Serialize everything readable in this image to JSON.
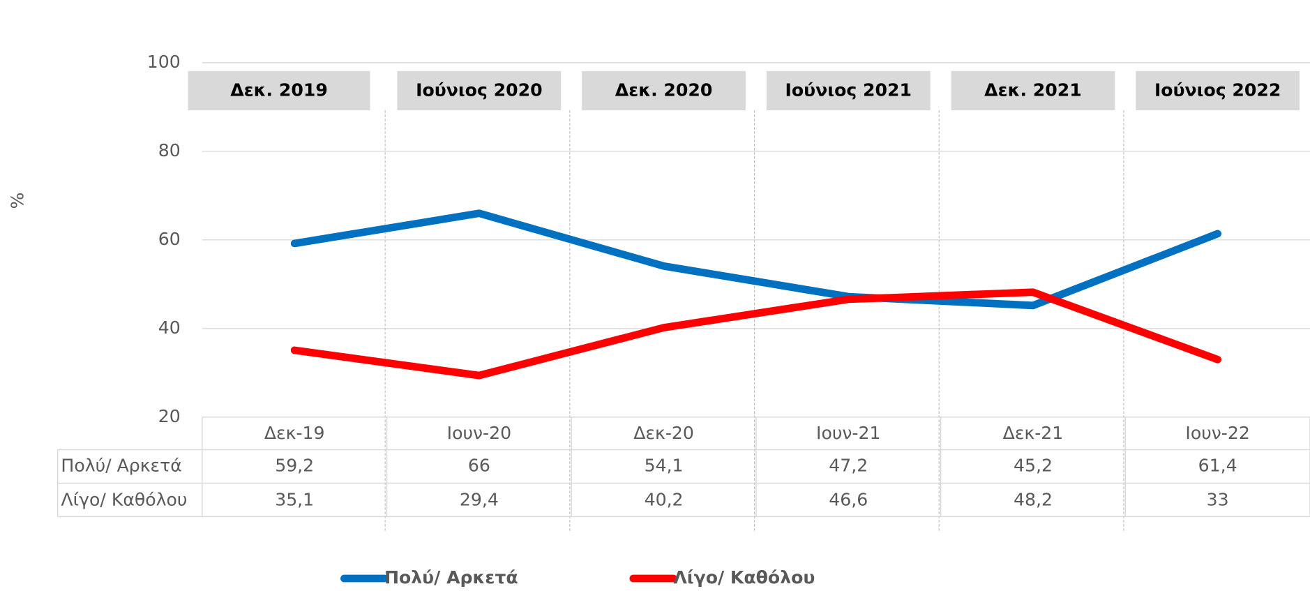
{
  "chart_data": {
    "type": "line",
    "y_label": "%",
    "period_labels": [
      "Δεκ. 2019",
      "Ιούνιος 2020",
      "Δεκ. 2020",
      "Ιούνιος 2021",
      "Δεκ. 2021",
      "Ιούνιος 2022"
    ],
    "categories": [
      "Δεκ-19",
      "Ιουν-20",
      "Δεκ-20",
      "Ιουν-21",
      "Δεκ-21",
      "Ιουν-22"
    ],
    "series": [
      {
        "name": "Πολύ/ Αρκετά",
        "color": "#0070c0",
        "values": [
          59.2,
          66,
          54.1,
          47.2,
          45.2,
          61.4
        ],
        "value_labels": [
          "59,2",
          "66",
          "54,1",
          "47,2",
          "45,2",
          "61,4"
        ]
      },
      {
        "name": "Λίγο/ Καθόλου",
        "color": "#ff0000",
        "values": [
          35.1,
          29.4,
          40.2,
          46.6,
          48.2,
          33
        ],
        "value_labels": [
          "35,1",
          "29,4",
          "40,2",
          "46,6",
          "48,2",
          "33"
        ]
      }
    ],
    "ylim": [
      20,
      100
    ],
    "yticks": [
      20,
      40,
      60,
      80,
      100
    ],
    "grid": true
  }
}
